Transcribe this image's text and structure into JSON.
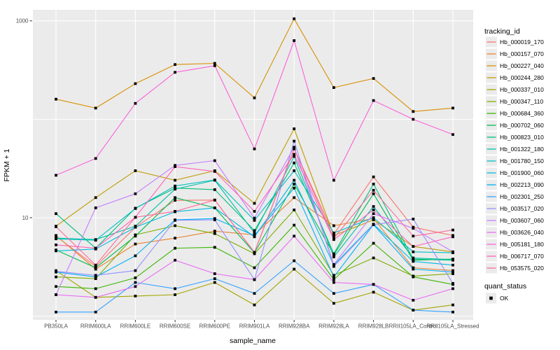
{
  "figure": {
    "y_axis_title": "FPKM + 1",
    "x_axis_title": "sample_name",
    "legend_title": "tracking_id",
    "quant_legend_title": "quant_status",
    "quant_status_ok": "OK"
  },
  "chart_data": {
    "type": "line",
    "title": "",
    "xlabel": "sample_name",
    "ylabel": "FPKM + 1",
    "y_scale": "log10",
    "ylim": [
      1,
      1100
    ],
    "grid": "on",
    "legend_position": "right",
    "panel_background": "#EBEBEB",
    "gridline_color": "#FFFFFF",
    "point_marker": {
      "shape": "square",
      "color": "#000000",
      "legend_label": "OK"
    },
    "y_ticks": [
      {
        "label": "1000",
        "value": 1000
      },
      {
        "label": "10",
        "value": 10
      }
    ],
    "y_gridlines": [
      1,
      10,
      100,
      1000
    ],
    "x_categories": [
      "PB350LA",
      "RRIM600LA",
      "RRIM600LE",
      "RRIM600SE",
      "RRIM600PE",
      "RRIM901LA",
      "RRIM928BA",
      "RRIM928LA",
      "RRIM928LB",
      "RRII105LA_Control",
      "RRII105LA_Stressed"
    ],
    "series": [
      {
        "name": "Hb_000019_170",
        "color": "#F8766D",
        "values": [
          6.5,
          3.2,
          8.0,
          15,
          15.1,
          4.4,
          50,
          6.8,
          26,
          8.0,
          6.6
        ]
      },
      {
        "name": "Hb_000157_070",
        "color": "#EA8331",
        "values": [
          6.6,
          3.0,
          5.4,
          6.2,
          7.3,
          6.7,
          16,
          8.3,
          9.8,
          3.1,
          2.9
        ]
      },
      {
        "name": "Hb_000227_040",
        "color": "#D89000",
        "values": [
          160,
          130,
          230,
          360,
          370,
          165,
          1050,
          210,
          260,
          120,
          130
        ]
      },
      {
        "name": "Hb_000244_280",
        "color": "#C09B00",
        "values": [
          8.2,
          16,
          30,
          24,
          30,
          14,
          80,
          6.6,
          9.5,
          5.1,
          4.5
        ]
      },
      {
        "name": "Hb_000337_010",
        "color": "#A3A500",
        "values": [
          2.9,
          1.55,
          1.6,
          1.65,
          2.2,
          1.3,
          3.0,
          1.35,
          1.75,
          1.15,
          1.3
        ]
      },
      {
        "name": "Hb_000347_110",
        "color": "#7CAE00",
        "values": [
          2.5,
          2.4,
          6.7,
          8.3,
          6.9,
          4.3,
          12,
          2.6,
          3.9,
          2.55,
          2.7
        ]
      },
      {
        "name": "Hb_000684_360",
        "color": "#39B600",
        "values": [
          2.0,
          1.9,
          2.45,
          4.9,
          5.0,
          3.1,
          8.4,
          2.35,
          5.5,
          2.5,
          2.1
        ]
      },
      {
        "name": "Hb_000702_060",
        "color": "#00BB4E",
        "values": [
          4.7,
          3.1,
          6.5,
          16,
          12.6,
          4.4,
          22,
          4.2,
          17.5,
          3.7,
          3.8
        ]
      },
      {
        "name": "Hb_000823_010",
        "color": "#00BF7D",
        "values": [
          11,
          4.9,
          12.5,
          20,
          19.3,
          7.4,
          36,
          4.3,
          22,
          3.8,
          3.7
        ]
      },
      {
        "name": "Hb_001322_180",
        "color": "#00C1A3",
        "values": [
          6.2,
          6.0,
          8.2,
          19.5,
          24,
          7.0,
          42,
          4.0,
          13,
          3.9,
          3.75
        ]
      },
      {
        "name": "Hb_001780_150",
        "color": "#00BFC4",
        "values": [
          6.1,
          5.9,
          12.4,
          21,
          24.2,
          9.4,
          30,
          7.0,
          10,
          4.5,
          4.4
        ]
      },
      {
        "name": "Hb_001900_060",
        "color": "#00BAE0",
        "values": [
          4.6,
          4.8,
          8.0,
          11.5,
          12.6,
          6.4,
          24,
          3.3,
          8.6,
          3.6,
          3.3
        ]
      },
      {
        "name": "Hb_002213_090",
        "color": "#00B0F6",
        "values": [
          2.8,
          2.5,
          4.1,
          9.5,
          9.8,
          6.6,
          20,
          2.5,
          8.5,
          3.0,
          2.8
        ]
      },
      {
        "name": "Hb_002301_250",
        "color": "#35A2FF",
        "values": [
          1.1,
          1.1,
          2.2,
          1.9,
          2.4,
          1.7,
          3.65,
          1.7,
          2.1,
          1.15,
          1.1
        ]
      },
      {
        "name": "Hb_003517_020",
        "color": "#9590FF",
        "values": [
          2.85,
          2.6,
          2.9,
          9.4,
          9.5,
          2.35,
          60,
          3.2,
          8.5,
          9.7,
          2.15
        ]
      },
      {
        "name": "Hb_003607_060",
        "color": "#C77CFF",
        "values": [
          1.65,
          12.6,
          17.5,
          34,
          38,
          9.9,
          52,
          3.35,
          11,
          7.8,
          4.5
        ]
      },
      {
        "name": "Hb_003626_040",
        "color": "#E76BF3",
        "values": [
          1.65,
          1.55,
          2.0,
          3.7,
          2.7,
          2.35,
          6.5,
          2.2,
          2.1,
          1.45,
          1.9
        ]
      },
      {
        "name": "Hb_005181_180",
        "color": "#FA62DB",
        "values": [
          27,
          40,
          145,
          300,
          350,
          50,
          630,
          24,
          155,
          100,
          70
        ]
      },
      {
        "name": "Hb_006717_070",
        "color": "#FF62BC",
        "values": [
          5.3,
          4.9,
          10.1,
          33,
          29.5,
          11.6,
          44,
          6.0,
          12,
          5.1,
          6.4
        ]
      },
      {
        "name": "Hb_053575_020",
        "color": "#FF6A98",
        "values": [
          8.1,
          3.3,
          10.1,
          11.6,
          15.1,
          4.45,
          50,
          6.2,
          19,
          6.5,
          7.5
        ]
      }
    ]
  }
}
